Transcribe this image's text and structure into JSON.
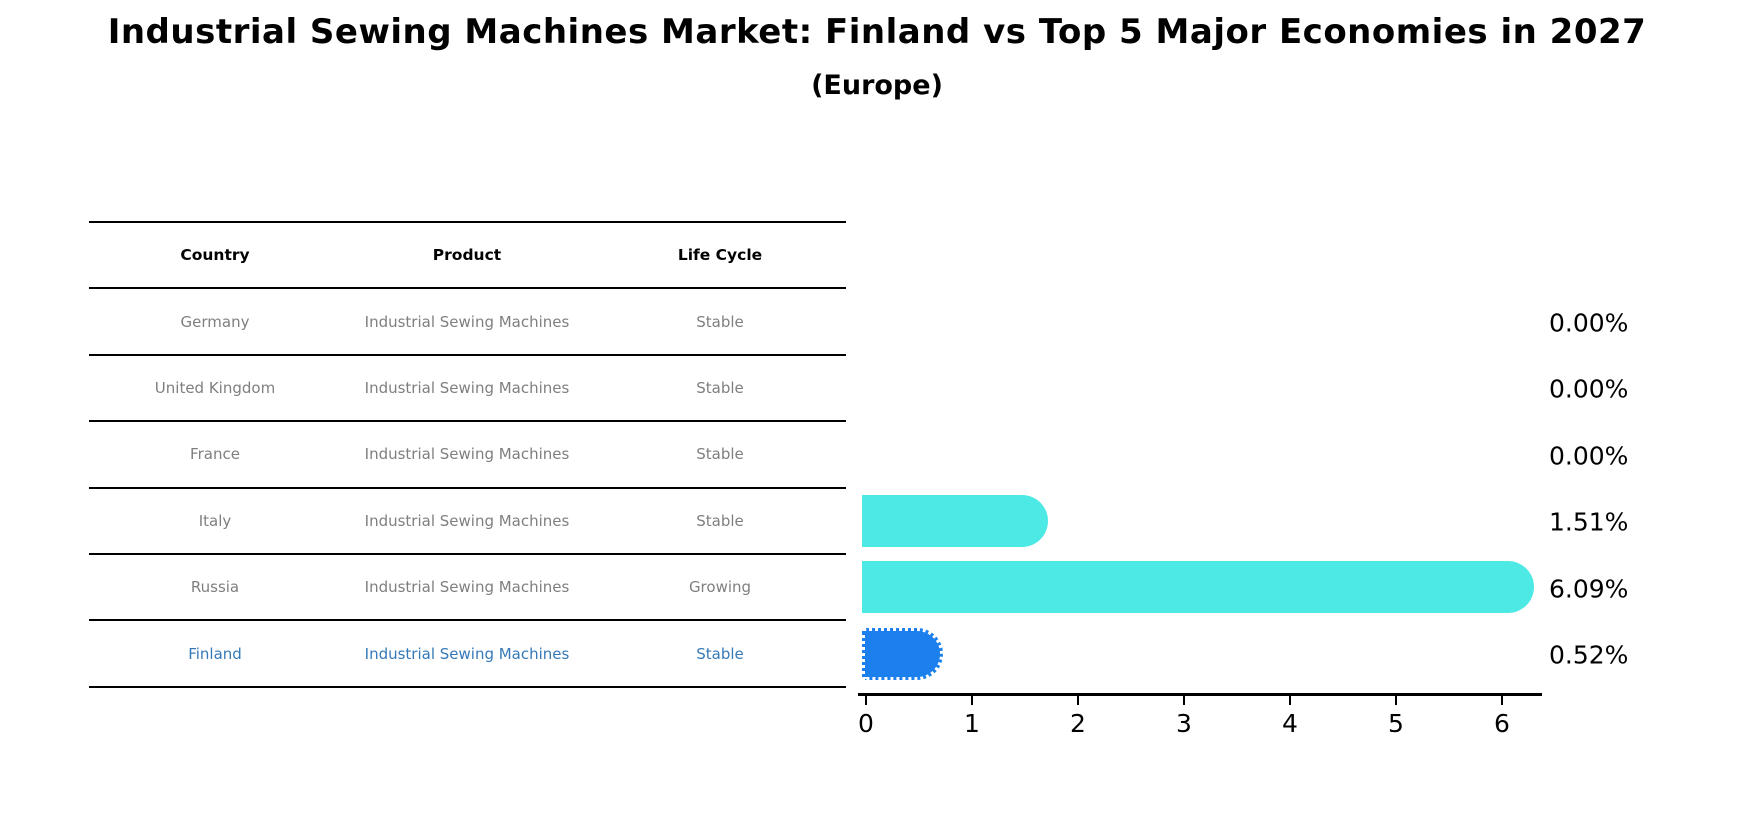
{
  "title": "Industrial Sewing Machines Market: Finland vs Top 5 Major Economies in 2027",
  "subtitle": "(Europe)",
  "table": {
    "headers": [
      "Country",
      "Product",
      "Life Cycle"
    ],
    "rows": [
      {
        "country": "Germany",
        "product": "Industrial Sewing Machines",
        "life_cycle": "Stable",
        "highlighted": false
      },
      {
        "country": "United Kingdom",
        "product": "Industrial Sewing Machines",
        "life_cycle": "Stable",
        "highlighted": false
      },
      {
        "country": "France",
        "product": "Industrial Sewing Machines",
        "life_cycle": "Stable",
        "highlighted": false
      },
      {
        "country": "Italy",
        "product": "Industrial Sewing Machines",
        "life_cycle": "Stable",
        "highlighted": false
      },
      {
        "country": "Russia",
        "product": "Industrial Sewing Machines",
        "life_cycle": "Growing",
        "highlighted": false
      },
      {
        "country": "Finland",
        "product": "Industrial Sewing Machines",
        "life_cycle": "Stable",
        "highlighted": true
      }
    ]
  },
  "chart_data": {
    "type": "bar",
    "orientation": "horizontal",
    "categories": [
      "Germany",
      "United Kingdom",
      "France",
      "Italy",
      "Russia",
      "Finland"
    ],
    "values": [
      0.0,
      0.0,
      0.0,
      1.51,
      6.09,
      0.52
    ],
    "value_labels": [
      "0.00%",
      "0.00%",
      "0.00%",
      "1.51%",
      "6.09%",
      "0.52%"
    ],
    "xticks": [
      "0",
      "1",
      "2",
      "3",
      "4",
      "5",
      "6"
    ],
    "xlim": [
      0,
      6.45
    ],
    "grid": false,
    "legend": "none",
    "bar_color": "#4de9e4",
    "highlight_color": "#1b80ee",
    "highlight_index": 5,
    "highlight_text_color": "#3579b8",
    "table_text_color": "#7f7f7f"
  }
}
